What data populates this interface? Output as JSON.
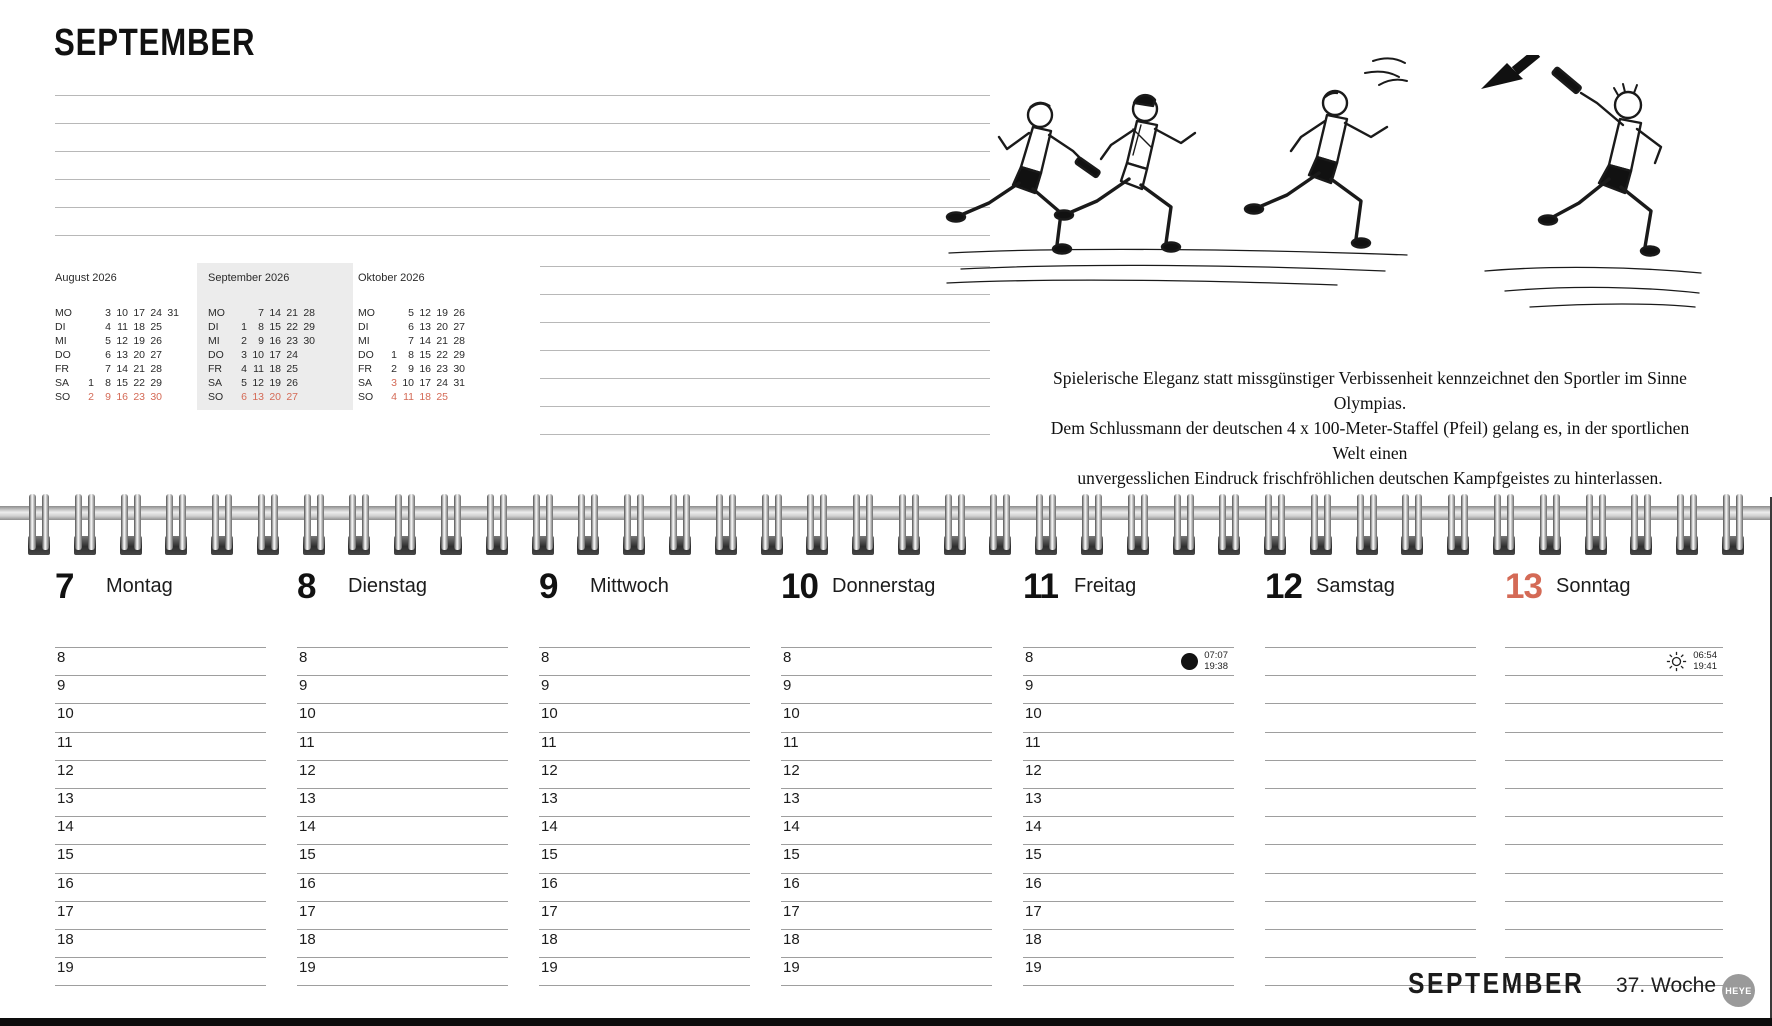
{
  "header": {
    "month_title": "SEPTEMBER"
  },
  "colors": {
    "accent-red": "#d46a56",
    "highlight-gray": "#ececec",
    "logo-gray": "#9a9a9a",
    "line-gray": "#b8b8b8",
    "row-line-gray": "#9e9e9e",
    "bar-black": "#0d0d0d"
  },
  "mini_calendars": [
    {
      "title": "August 2026",
      "highlighted": false,
      "rows": [
        {
          "label": "MO",
          "cells": [
            "",
            "3",
            "10",
            "17",
            "24",
            "31"
          ],
          "red": []
        },
        {
          "label": "DI",
          "cells": [
            "",
            "4",
            "11",
            "18",
            "25",
            ""
          ],
          "red": []
        },
        {
          "label": "MI",
          "cells": [
            "",
            "5",
            "12",
            "19",
            "26",
            ""
          ],
          "red": []
        },
        {
          "label": "DO",
          "cells": [
            "",
            "6",
            "13",
            "20",
            "27",
            ""
          ],
          "red": []
        },
        {
          "label": "FR",
          "cells": [
            "",
            "7",
            "14",
            "21",
            "28",
            ""
          ],
          "red": []
        },
        {
          "label": "SA",
          "cells": [
            "1",
            "8",
            "15",
            "22",
            "29",
            ""
          ],
          "red": []
        },
        {
          "label": "SO",
          "cells": [
            "2",
            "9",
            "16",
            "23",
            "30",
            ""
          ],
          "red": [
            0,
            1,
            2,
            3,
            4
          ]
        }
      ]
    },
    {
      "title": "September 2026",
      "highlighted": true,
      "rows": [
        {
          "label": "MO",
          "cells": [
            "",
            "7",
            "14",
            "21",
            "28"
          ],
          "red": []
        },
        {
          "label": "DI",
          "cells": [
            "1",
            "8",
            "15",
            "22",
            "29"
          ],
          "red": []
        },
        {
          "label": "MI",
          "cells": [
            "2",
            "9",
            "16",
            "23",
            "30"
          ],
          "red": []
        },
        {
          "label": "DO",
          "cells": [
            "3",
            "10",
            "17",
            "24",
            ""
          ],
          "red": []
        },
        {
          "label": "FR",
          "cells": [
            "4",
            "11",
            "18",
            "25",
            ""
          ],
          "red": []
        },
        {
          "label": "SA",
          "cells": [
            "5",
            "12",
            "19",
            "26",
            ""
          ],
          "red": []
        },
        {
          "label": "SO",
          "cells": [
            "6",
            "13",
            "20",
            "27",
            ""
          ],
          "red": [
            0,
            1,
            2,
            3
          ]
        }
      ]
    },
    {
      "title": "Oktober 2026",
      "highlighted": false,
      "rows": [
        {
          "label": "MO",
          "cells": [
            "",
            "5",
            "12",
            "19",
            "26"
          ],
          "red": []
        },
        {
          "label": "DI",
          "cells": [
            "",
            "6",
            "13",
            "20",
            "27"
          ],
          "red": []
        },
        {
          "label": "MI",
          "cells": [
            "",
            "7",
            "14",
            "21",
            "28"
          ],
          "red": []
        },
        {
          "label": "DO",
          "cells": [
            "1",
            "8",
            "15",
            "22",
            "29"
          ],
          "red": []
        },
        {
          "label": "FR",
          "cells": [
            "2",
            "9",
            "16",
            "23",
            "30"
          ],
          "red": []
        },
        {
          "label": "SA",
          "cells": [
            "3",
            "10",
            "17",
            "24",
            "31"
          ],
          "red": [
            0
          ]
        },
        {
          "label": "SO",
          "cells": [
            "4",
            "11",
            "18",
            "25",
            ""
          ],
          "red": [
            0,
            1,
            2,
            3
          ]
        }
      ]
    }
  ],
  "caption": {
    "lines": [
      "Spielerische Eleganz statt missgünstiger Verbissenheit kennzeichnet den Sportler im Sinne Olympias.",
      "Dem Schlussmann der deutschen 4 x 100-Meter-Staffel (Pfeil) gelang es, in der sportlichen Welt einen",
      "unvergesslichen Eindruck frischfröhlichen deutschen Kampfgeistes zu hinterlassen."
    ]
  },
  "week": {
    "days": [
      {
        "number": "7",
        "name": "Montag",
        "red": false,
        "hours": [
          "8",
          "9",
          "10",
          "11",
          "12",
          "13",
          "14",
          "15",
          "16",
          "17",
          "18",
          "19"
        ],
        "astro": null
      },
      {
        "number": "8",
        "name": "Dienstag",
        "red": false,
        "hours": [
          "8",
          "9",
          "10",
          "11",
          "12",
          "13",
          "14",
          "15",
          "16",
          "17",
          "18",
          "19"
        ],
        "astro": null
      },
      {
        "number": "9",
        "name": "Mittwoch",
        "red": false,
        "hours": [
          "8",
          "9",
          "10",
          "11",
          "12",
          "13",
          "14",
          "15",
          "16",
          "17",
          "18",
          "19"
        ],
        "astro": null
      },
      {
        "number": "10",
        "name": "Donnerstag",
        "red": false,
        "hours": [
          "8",
          "9",
          "10",
          "11",
          "12",
          "13",
          "14",
          "15",
          "16",
          "17",
          "18",
          "19"
        ],
        "astro": null
      },
      {
        "number": "11",
        "name": "Freitag",
        "red": false,
        "hours": [
          "8",
          "9",
          "10",
          "11",
          "12",
          "13",
          "14",
          "15",
          "16",
          "17",
          "18",
          "19"
        ],
        "astro": {
          "icon": "new-moon-icon",
          "times": [
            "07:07",
            "19:38"
          ]
        }
      },
      {
        "number": "12",
        "name": "Samstag",
        "red": false,
        "hours": [],
        "astro": null
      },
      {
        "number": "13",
        "name": "Sonntag",
        "red": true,
        "hours": [],
        "astro": {
          "icon": "sun-icon",
          "times": [
            "06:54",
            "19:41"
          ]
        }
      }
    ]
  },
  "footer": {
    "month": "SEPTEMBER",
    "week": "37. Woche",
    "logo": "HEYE"
  }
}
